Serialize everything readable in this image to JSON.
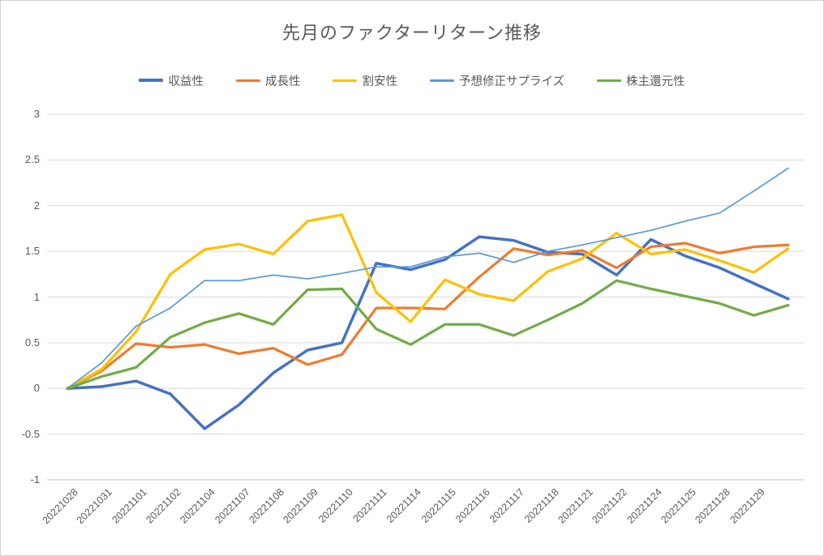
{
  "title": "先月のファクターリターン推移",
  "colors": {
    "background": "#FFFFFF",
    "border": "#D2D2D2",
    "grid": "#D9D9D9",
    "axis_line": "#C6C6C6",
    "title_text": "#595959",
    "axis_text": "#595959",
    "legend_text": "#595959"
  },
  "chart_data": {
    "type": "line",
    "title": "先月のファクターリターン推移",
    "legend_position": "top",
    "grid": true,
    "x_axis": {
      "label_rotation_deg": 45,
      "note_last_point_unlabeled": true
    },
    "y_axis": {
      "min": -1,
      "max": 3,
      "step": 0.5,
      "tick_labels": [
        "3",
        "2.5",
        "2",
        "1.5",
        "1",
        "0.5",
        "0",
        "-0.5",
        "-1"
      ]
    },
    "categories": [
      "20221028",
      "20221031",
      "20221101",
      "20221102",
      "20221104",
      "20221107",
      "20221108",
      "20221109",
      "20221110",
      "20221111",
      "20221114",
      "20221115",
      "20221116",
      "20221117",
      "20221118",
      "20221121",
      "20221122",
      "20221124",
      "20221125",
      "20221128",
      "20221129",
      ""
    ],
    "series": [
      {
        "key": "profitability",
        "name": "収益性",
        "color": "#4472C4",
        "line_width": 3.5,
        "values": [
          0,
          0.02,
          0.08,
          -0.06,
          -0.44,
          -0.18,
          0.17,
          0.42,
          0.5,
          1.37,
          1.3,
          1.41,
          1.66,
          1.62,
          1.49,
          1.47,
          1.24,
          1.63,
          1.45,
          1.32,
          1.15,
          0.98
        ]
      },
      {
        "key": "growth",
        "name": "成長性",
        "color": "#ED7D31",
        "line_width": 3.25,
        "values": [
          0,
          0.19,
          0.49,
          0.45,
          0.48,
          0.38,
          0.44,
          0.26,
          0.37,
          0.88,
          0.88,
          0.87,
          1.22,
          1.53,
          1.46,
          1.51,
          1.32,
          1.55,
          1.59,
          1.48,
          1.55,
          1.57
        ]
      },
      {
        "key": "value",
        "name": "割安性",
        "color": "#FFC000",
        "line_width": 3.25,
        "values": [
          0,
          0.21,
          0.62,
          1.25,
          1.52,
          1.58,
          1.47,
          1.83,
          1.9,
          1.05,
          0.73,
          1.19,
          1.03,
          0.96,
          1.28,
          1.42,
          1.7,
          1.47,
          1.52,
          1.4,
          1.27,
          1.53
        ]
      },
      {
        "key": "estimate-revision-surprise",
        "name": "予想修正サプライズ",
        "color": "#5B9BD5",
        "line_width": 1.75,
        "values": [
          0,
          0.28,
          0.68,
          0.88,
          1.18,
          1.18,
          1.24,
          1.2,
          1.26,
          1.33,
          1.33,
          1.44,
          1.48,
          1.38,
          1.5,
          1.57,
          1.65,
          1.73,
          1.83,
          1.92,
          2.16,
          2.41
        ]
      },
      {
        "key": "shareholder-return",
        "name": "株主還元性",
        "color": "#70AD47",
        "line_width": 3.25,
        "values": [
          0,
          0.13,
          0.23,
          0.56,
          0.72,
          0.82,
          0.7,
          1.08,
          1.09,
          0.65,
          0.48,
          0.7,
          0.7,
          0.58,
          0.75,
          0.93,
          1.18,
          1.09,
          1.01,
          0.93,
          0.8,
          0.91
        ]
      }
    ]
  }
}
